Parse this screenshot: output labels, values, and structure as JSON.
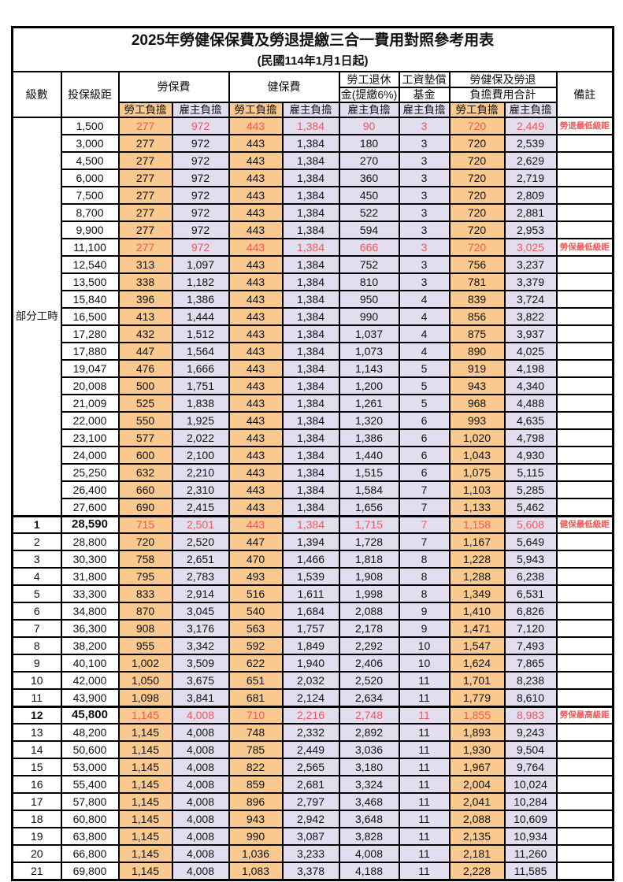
{
  "title": "2025年勞健保保費及勞退提繳三合一費用對照參考用表",
  "subtitle": "(民國114年1月1日起)",
  "header": {
    "level": "級數",
    "bracket": "投保級距",
    "labor_insurance": "勞保費",
    "health_insurance": "健保費",
    "pension_line1": "勞工退休",
    "pension_line2": "金(提繳6%)",
    "wage_fund_line1": "工資墊償",
    "wage_fund_line2": "基金",
    "total_line1": "勞健保及勞退",
    "total_line2": "負擔費用合計",
    "remark": "備註",
    "worker_burden": "勞工負擔",
    "employer_burden": "雇主負擔"
  },
  "part_time_label": "部分工時",
  "colors": {
    "worker_column_bg": "#F9C98F",
    "employer_column_bg": "#E2DEF0",
    "highlight_text": "#EC5B5B",
    "border": "#000000",
    "background": "#FFFFFF"
  },
  "chart_data": {
    "type": "table",
    "columns": [
      "level",
      "bracket",
      "labor_worker",
      "labor_employer",
      "health_worker",
      "health_employer",
      "pension_employer",
      "fund_employer",
      "total_worker",
      "total_employer",
      "remark"
    ],
    "part_time_row_span": 23,
    "red_rows": [
      0,
      7,
      23,
      34
    ],
    "bold_rows": [
      23,
      34
    ],
    "thick_top_rows": [
      23,
      34
    ],
    "rows": [
      [
        "",
        "1,500",
        "277",
        "972",
        "443",
        "1,384",
        "90",
        "3",
        "720",
        "2,449",
        "勞退最低級距"
      ],
      [
        "",
        "3,000",
        "277",
        "972",
        "443",
        "1,384",
        "180",
        "3",
        "720",
        "2,539",
        ""
      ],
      [
        "",
        "4,500",
        "277",
        "972",
        "443",
        "1,384",
        "270",
        "3",
        "720",
        "2,629",
        ""
      ],
      [
        "",
        "6,000",
        "277",
        "972",
        "443",
        "1,384",
        "360",
        "3",
        "720",
        "2,719",
        ""
      ],
      [
        "",
        "7,500",
        "277",
        "972",
        "443",
        "1,384",
        "450",
        "3",
        "720",
        "2,809",
        ""
      ],
      [
        "",
        "8,700",
        "277",
        "972",
        "443",
        "1,384",
        "522",
        "3",
        "720",
        "2,881",
        ""
      ],
      [
        "",
        "9,900",
        "277",
        "972",
        "443",
        "1,384",
        "594",
        "3",
        "720",
        "2,953",
        ""
      ],
      [
        "",
        "11,100",
        "277",
        "972",
        "443",
        "1,384",
        "666",
        "3",
        "720",
        "3,025",
        "勞保最低級距"
      ],
      [
        "",
        "12,540",
        "313",
        "1,097",
        "443",
        "1,384",
        "752",
        "3",
        "756",
        "3,237",
        ""
      ],
      [
        "",
        "13,500",
        "338",
        "1,182",
        "443",
        "1,384",
        "810",
        "3",
        "781",
        "3,379",
        ""
      ],
      [
        "",
        "15,840",
        "396",
        "1,386",
        "443",
        "1,384",
        "950",
        "4",
        "839",
        "3,724",
        ""
      ],
      [
        "",
        "16,500",
        "413",
        "1,444",
        "443",
        "1,384",
        "990",
        "4",
        "856",
        "3,822",
        ""
      ],
      [
        "",
        "17,280",
        "432",
        "1,512",
        "443",
        "1,384",
        "1,037",
        "4",
        "875",
        "3,937",
        ""
      ],
      [
        "",
        "17,880",
        "447",
        "1,564",
        "443",
        "1,384",
        "1,073",
        "4",
        "890",
        "4,025",
        ""
      ],
      [
        "",
        "19,047",
        "476",
        "1,666",
        "443",
        "1,384",
        "1,143",
        "5",
        "919",
        "4,198",
        ""
      ],
      [
        "",
        "20,008",
        "500",
        "1,751",
        "443",
        "1,384",
        "1,200",
        "5",
        "943",
        "4,340",
        ""
      ],
      [
        "",
        "21,009",
        "525",
        "1,838",
        "443",
        "1,384",
        "1,261",
        "5",
        "968",
        "4,488",
        ""
      ],
      [
        "",
        "22,000",
        "550",
        "1,925",
        "443",
        "1,384",
        "1,320",
        "6",
        "993",
        "4,635",
        ""
      ],
      [
        "",
        "23,100",
        "577",
        "2,022",
        "443",
        "1,384",
        "1,386",
        "6",
        "1,020",
        "4,798",
        ""
      ],
      [
        "",
        "24,000",
        "600",
        "2,100",
        "443",
        "1,384",
        "1,440",
        "6",
        "1,043",
        "4,930",
        ""
      ],
      [
        "",
        "25,250",
        "632",
        "2,210",
        "443",
        "1,384",
        "1,515",
        "6",
        "1,075",
        "5,115",
        ""
      ],
      [
        "",
        "26,400",
        "660",
        "2,310",
        "443",
        "1,384",
        "1,584",
        "7",
        "1,103",
        "5,285",
        ""
      ],
      [
        "",
        "27,600",
        "690",
        "2,415",
        "443",
        "1,384",
        "1,656",
        "7",
        "1,133",
        "5,462",
        ""
      ],
      [
        "1",
        "28,590",
        "715",
        "2,501",
        "443",
        "1,384",
        "1,715",
        "7",
        "1,158",
        "5,608",
        "健保最低級距"
      ],
      [
        "2",
        "28,800",
        "720",
        "2,520",
        "447",
        "1,394",
        "1,728",
        "7",
        "1,167",
        "5,649",
        ""
      ],
      [
        "3",
        "30,300",
        "758",
        "2,651",
        "470",
        "1,466",
        "1,818",
        "8",
        "1,228",
        "5,943",
        ""
      ],
      [
        "4",
        "31,800",
        "795",
        "2,783",
        "493",
        "1,539",
        "1,908",
        "8",
        "1,288",
        "6,238",
        ""
      ],
      [
        "5",
        "33,300",
        "833",
        "2,914",
        "516",
        "1,611",
        "1,998",
        "8",
        "1,349",
        "6,531",
        ""
      ],
      [
        "6",
        "34,800",
        "870",
        "3,045",
        "540",
        "1,684",
        "2,088",
        "9",
        "1,410",
        "6,826",
        ""
      ],
      [
        "7",
        "36,300",
        "908",
        "3,176",
        "563",
        "1,757",
        "2,178",
        "9",
        "1,471",
        "7,120",
        ""
      ],
      [
        "8",
        "38,200",
        "955",
        "3,342",
        "592",
        "1,849",
        "2,292",
        "10",
        "1,547",
        "7,493",
        ""
      ],
      [
        "9",
        "40,100",
        "1,002",
        "3,509",
        "622",
        "1,940",
        "2,406",
        "10",
        "1,624",
        "7,865",
        ""
      ],
      [
        "10",
        "42,000",
        "1,050",
        "3,675",
        "651",
        "2,032",
        "2,520",
        "11",
        "1,701",
        "8,238",
        ""
      ],
      [
        "11",
        "43,900",
        "1,098",
        "3,841",
        "681",
        "2,124",
        "2,634",
        "11",
        "1,779",
        "8,610",
        ""
      ],
      [
        "12",
        "45,800",
        "1,145",
        "4,008",
        "710",
        "2,216",
        "2,748",
        "11",
        "1,855",
        "8,983",
        "勞保最高級距"
      ],
      [
        "13",
        "48,200",
        "1,145",
        "4,008",
        "748",
        "2,332",
        "2,892",
        "11",
        "1,893",
        "9,243",
        ""
      ],
      [
        "14",
        "50,600",
        "1,145",
        "4,008",
        "785",
        "2,449",
        "3,036",
        "11",
        "1,930",
        "9,504",
        ""
      ],
      [
        "15",
        "53,000",
        "1,145",
        "4,008",
        "822",
        "2,565",
        "3,180",
        "11",
        "1,967",
        "9,764",
        ""
      ],
      [
        "16",
        "55,400",
        "1,145",
        "4,008",
        "859",
        "2,681",
        "3,324",
        "11",
        "2,004",
        "10,024",
        ""
      ],
      [
        "17",
        "57,800",
        "1,145",
        "4,008",
        "896",
        "2,797",
        "3,468",
        "11",
        "2,041",
        "10,284",
        ""
      ],
      [
        "18",
        "60,800",
        "1,145",
        "4,008",
        "943",
        "2,942",
        "3,648",
        "11",
        "2,088",
        "10,609",
        ""
      ],
      [
        "19",
        "63,800",
        "1,145",
        "4,008",
        "990",
        "3,087",
        "3,828",
        "11",
        "2,135",
        "10,934",
        ""
      ],
      [
        "20",
        "66,800",
        "1,145",
        "4,008",
        "1,036",
        "3,233",
        "4,008",
        "11",
        "2,181",
        "11,260",
        ""
      ],
      [
        "21",
        "69,800",
        "1,145",
        "4,008",
        "1,083",
        "3,378",
        "4,188",
        "11",
        "2,228",
        "11,585",
        ""
      ]
    ]
  }
}
